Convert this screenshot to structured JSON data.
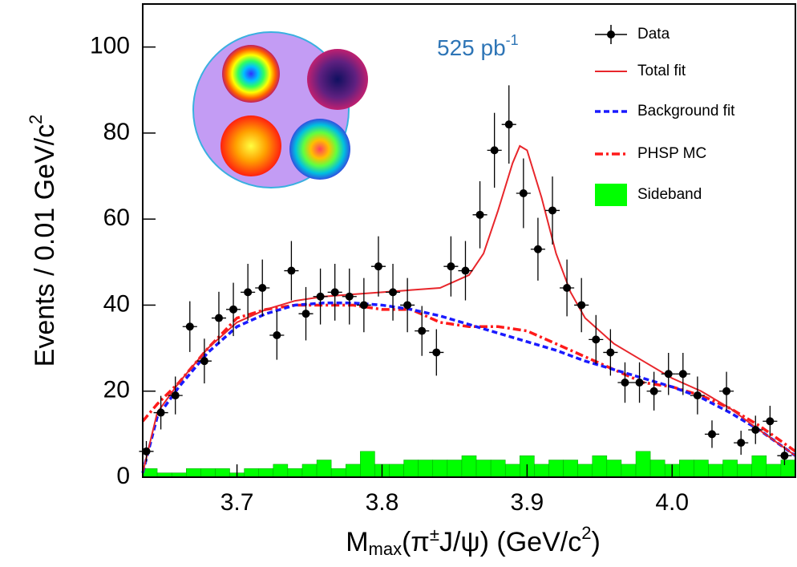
{
  "chart_data": {
    "type": "combo",
    "annotation": {
      "text": "525 pb",
      "sup": "-1"
    },
    "xlabel": [
      "M",
      "max",
      "(π",
      "±",
      "J/ψ) (GeV/c",
      "2",
      ")"
    ],
    "ylabel": [
      "Events / 0.01 GeV/c",
      "2"
    ],
    "xlim": [
      3.635,
      4.085
    ],
    "ylim": [
      0,
      110
    ],
    "xticks": [
      3.7,
      3.8,
      3.9,
      {
        "value": 4,
        "label": "4.0"
      }
    ],
    "yticks": [
      0,
      20,
      40,
      60,
      80,
      100
    ],
    "legend": "upper right",
    "series": [
      {
        "name": "Data",
        "type": "errorbar",
        "color": "#000000",
        "x": [
          3.6375,
          3.6475,
          3.6575,
          3.6675,
          3.6775,
          3.6875,
          3.6975,
          3.7075,
          3.7175,
          3.7275,
          3.7375,
          3.7475,
          3.7575,
          3.7675,
          3.7775,
          3.7875,
          3.7975,
          3.8075,
          3.8175,
          3.8275,
          3.8375,
          3.8475,
          3.8575,
          3.8675,
          3.8775,
          3.8875,
          3.8975,
          3.9075,
          3.9175,
          3.9275,
          3.9375,
          3.9475,
          3.9575,
          3.9675,
          3.9775,
          3.9875,
          3.9975,
          4.0075,
          4.0175,
          4.0275,
          4.0375,
          4.0475,
          4.0575,
          4.0675,
          4.0775
        ],
        "values": [
          6,
          15,
          19,
          35,
          27,
          37,
          39,
          43,
          44,
          33,
          48,
          38,
          42,
          43,
          42,
          40,
          49,
          43,
          40,
          34,
          29,
          49,
          48,
          61,
          76,
          82,
          66,
          53,
          62,
          44,
          40,
          32,
          29,
          22,
          22,
          20,
          24,
          24,
          19,
          10,
          20,
          8,
          11,
          13,
          5
        ],
        "errors": [
          2.4,
          3.9,
          4.4,
          5.9,
          5.2,
          6.1,
          6.2,
          6.6,
          6.6,
          5.7,
          6.9,
          6.2,
          6.5,
          6.6,
          6.5,
          6.3,
          7,
          6.6,
          6.3,
          5.8,
          5.4,
          7,
          6.9,
          7.8,
          8.7,
          9.1,
          8.1,
          7.3,
          7.9,
          6.6,
          6.3,
          5.7,
          5.4,
          4.7,
          4.7,
          4.5,
          4.9,
          4.9,
          4.4,
          3.2,
          4.5,
          2.8,
          3.3,
          3.6,
          2.2
        ],
        "xerr": 0.005
      },
      {
        "name": "Total fit",
        "type": "line",
        "style": "solid",
        "color": "#e8262b",
        "x": [
          3.635,
          3.645,
          3.66,
          3.68,
          3.7,
          3.72,
          3.74,
          3.76,
          3.78,
          3.8,
          3.82,
          3.84,
          3.86,
          3.87,
          3.88,
          3.89,
          3.895,
          3.9,
          3.91,
          3.92,
          3.93,
          3.94,
          3.96,
          3.98,
          4.0,
          4.02,
          4.04,
          4.06,
          4.085
        ],
        "values": [
          1,
          15,
          22,
          30,
          36,
          39,
          41,
          42,
          42.5,
          43,
          43.5,
          44,
          47,
          52,
          62,
          73,
          77,
          76,
          65,
          52,
          43,
          37,
          31,
          27,
          23,
          20,
          16,
          11,
          5
        ]
      },
      {
        "name": "Background fit",
        "type": "line",
        "style": "dashed",
        "color": "#1a1aff",
        "x": [
          3.635,
          3.645,
          3.66,
          3.68,
          3.7,
          3.72,
          3.74,
          3.76,
          3.78,
          3.8,
          3.82,
          3.84,
          3.86,
          3.88,
          3.9,
          3.92,
          3.94,
          3.96,
          3.98,
          4.0,
          4.02,
          4.04,
          4.06,
          4.085
        ],
        "values": [
          1,
          14,
          21,
          29,
          35,
          38,
          40,
          40.5,
          40.5,
          40,
          39,
          37.5,
          35.5,
          33.5,
          31.5,
          29.5,
          27,
          25,
          23,
          21,
          18.5,
          15,
          11,
          5
        ]
      },
      {
        "name": "PHSP MC",
        "type": "line",
        "style": "dashdot",
        "color": "#ff1a1a",
        "x": [
          3.635,
          3.645,
          3.66,
          3.68,
          3.7,
          3.72,
          3.74,
          3.76,
          3.78,
          3.8,
          3.82,
          3.84,
          3.86,
          3.88,
          3.9,
          3.92,
          3.94,
          3.96,
          3.98,
          4.0,
          4.02,
          4.04,
          4.06,
          4.085
        ],
        "values": [
          13,
          17,
          22,
          30,
          37,
          39,
          40,
          40,
          40,
          39,
          39,
          36,
          35,
          35,
          34,
          31,
          28,
          25,
          22,
          21,
          19,
          16,
          12,
          6
        ]
      },
      {
        "name": "Sideband",
        "type": "histogram",
        "color": "#00ff00",
        "bins": [
          3.635,
          3.645,
          3.655,
          3.665,
          3.675,
          3.685,
          3.695,
          3.705,
          3.715,
          3.725,
          3.735,
          3.745,
          3.755,
          3.765,
          3.775,
          3.785,
          3.795,
          3.805,
          3.815,
          3.825,
          3.835,
          3.845,
          3.855,
          3.865,
          3.875,
          3.885,
          3.895,
          3.905,
          3.915,
          3.925,
          3.935,
          3.945,
          3.955,
          3.965,
          3.975,
          3.985,
          3.995,
          4.005,
          4.015,
          4.025,
          4.035,
          4.045,
          4.055,
          4.065,
          4.075,
          4.085
        ],
        "values": [
          2,
          1,
          1,
          2,
          2,
          2,
          1,
          2,
          2,
          3,
          2,
          3,
          4,
          2,
          3,
          6,
          3,
          3,
          4,
          4,
          4,
          4,
          5,
          4,
          4,
          3,
          5,
          3,
          4,
          4,
          3,
          5,
          4,
          3,
          6,
          4,
          3,
          4,
          4,
          3,
          4,
          3,
          5,
          3,
          4
        ]
      }
    ]
  }
}
